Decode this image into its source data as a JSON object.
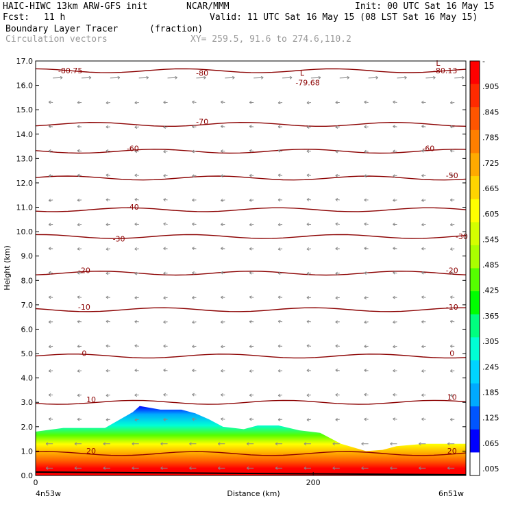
{
  "header": {
    "model": "HAIC-HIWC 13km ARW-GFS init",
    "org": "NCAR/MMM",
    "init": "Init: 00 UTC Sat 16 May 15",
    "fcst_label": "Fcst:",
    "fcst_value": "11 h",
    "valid": "Valid: 11 UTC Sat 16 May 15 (08 LST Sat 16 May 15)",
    "field": "Boundary Layer Tracer",
    "units": "(fraction)",
    "vectors": "Circulation vectors",
    "xy": "XY= 259.5, 91.6 to 274.6,110.2"
  },
  "colors": {
    "contour": "#8b0000",
    "vector": "#888888",
    "axis": "#000000"
  },
  "chart_data": {
    "type": "heatmap",
    "xlabel": "Distance (km)",
    "ylabel": "Height (km)",
    "xlim": [
      0,
      310
    ],
    "ylim": [
      0,
      17
    ],
    "x_ticks": [
      "0",
      "200"
    ],
    "x_tick_values": [
      0,
      200
    ],
    "x_endpoints": {
      "left": "4n53w",
      "right": "6n51w"
    },
    "y_ticks": [
      "0.0",
      "1.0",
      "2.0",
      "3.0",
      "4.0",
      "5.0",
      "6.0",
      "7.0",
      "8.0",
      "9.0",
      "10.0",
      "11.0",
      "12.0",
      "13.0",
      "14.0",
      "15.0",
      "16.0",
      "17.0"
    ],
    "tracer_top_km": [
      [
        0,
        1.8
      ],
      [
        20,
        1.95
      ],
      [
        50,
        1.95
      ],
      [
        70,
        2.6
      ],
      [
        75,
        2.85
      ],
      [
        90,
        2.7
      ],
      [
        105,
        2.7
      ],
      [
        115,
        2.55
      ],
      [
        125,
        2.3
      ],
      [
        135,
        2.0
      ],
      [
        150,
        1.9
      ],
      [
        160,
        2.05
      ],
      [
        175,
        2.05
      ],
      [
        190,
        1.85
      ],
      [
        205,
        1.75
      ],
      [
        220,
        1.3
      ],
      [
        238,
        1.0
      ],
      [
        250,
        1.05
      ],
      [
        260,
        1.2
      ],
      [
        280,
        1.3
      ],
      [
        310,
        1.3
      ]
    ],
    "temperature_contours_c": [
      {
        "value": -80,
        "height_km": 16.6
      },
      {
        "value": -70,
        "height_km": 14.4
      },
      {
        "value": -60,
        "height_km": 13.3
      },
      {
        "value": -50,
        "height_km": 12.2
      },
      {
        "value": -40,
        "height_km": 10.9
      },
      {
        "value": -30,
        "height_km": 9.8
      },
      {
        "value": -20,
        "height_km": 8.3
      },
      {
        "value": -10,
        "height_km": 6.8
      },
      {
        "value": 0,
        "height_km": 4.9
      },
      {
        "value": 10,
        "height_km": 3.0
      },
      {
        "value": 20,
        "height_km": 0.9
      }
    ],
    "contour_labels": [
      {
        "text": "-80.75",
        "x_km": 25,
        "y_km": 16.5
      },
      {
        "text": "-80",
        "x_km": 120,
        "y_km": 16.4
      },
      {
        "text": "L",
        "x_km": 192,
        "y_km": 16.4
      },
      {
        "text": "-79.68",
        "x_km": 196,
        "y_km": 16.0
      },
      {
        "text": "L",
        "x_km": 290,
        "y_km": 16.8
      },
      {
        "text": "-80.13",
        "x_km": 295,
        "y_km": 16.5
      },
      {
        "text": "-70",
        "x_km": 120,
        "y_km": 14.4
      },
      {
        "text": "-60",
        "x_km": 70,
        "y_km": 13.3
      },
      {
        "text": "-60",
        "x_km": 283,
        "y_km": 13.3
      },
      {
        "text": "-50",
        "x_km": 300,
        "y_km": 12.2
      },
      {
        "text": "-40",
        "x_km": 70,
        "y_km": 10.9
      },
      {
        "text": "-30",
        "x_km": 60,
        "y_km": 9.6
      },
      {
        "text": "-30",
        "x_km": 307,
        "y_km": 9.7
      },
      {
        "text": "-20",
        "x_km": 35,
        "y_km": 8.3
      },
      {
        "text": "-20",
        "x_km": 300,
        "y_km": 8.3
      },
      {
        "text": "-10",
        "x_km": 35,
        "y_km": 6.8
      },
      {
        "text": "-10",
        "x_km": 300,
        "y_km": 6.8
      },
      {
        "text": "0",
        "x_km": 35,
        "y_km": 4.9
      },
      {
        "text": "0",
        "x_km": 300,
        "y_km": 4.9
      },
      {
        "text": "10",
        "x_km": 40,
        "y_km": 3.0
      },
      {
        "text": "10",
        "x_km": 300,
        "y_km": 3.1
      },
      {
        "text": "20",
        "x_km": 40,
        "y_km": 0.9
      },
      {
        "text": "20",
        "x_km": 300,
        "y_km": 0.9
      }
    ],
    "colorbar": {
      "labels": [
        "-",
        ".905",
        ".845",
        ".785",
        ".725",
        ".665",
        ".605",
        ".545",
        ".485",
        ".425",
        ".365",
        ".305",
        ".245",
        ".185",
        ".125",
        ".065",
        ".005"
      ],
      "colors": [
        "#ff0000",
        "#ff2a00",
        "#ff5500",
        "#ff7f00",
        "#ffaa00",
        "#ffd400",
        "#ffff00",
        "#d4ff00",
        "#aaff00",
        "#55ff00",
        "#00ff00",
        "#00ff7f",
        "#00ffd4",
        "#00d4ff",
        "#00aaff",
        "#0055ff",
        "#0000ff",
        "#ffffff"
      ]
    }
  }
}
